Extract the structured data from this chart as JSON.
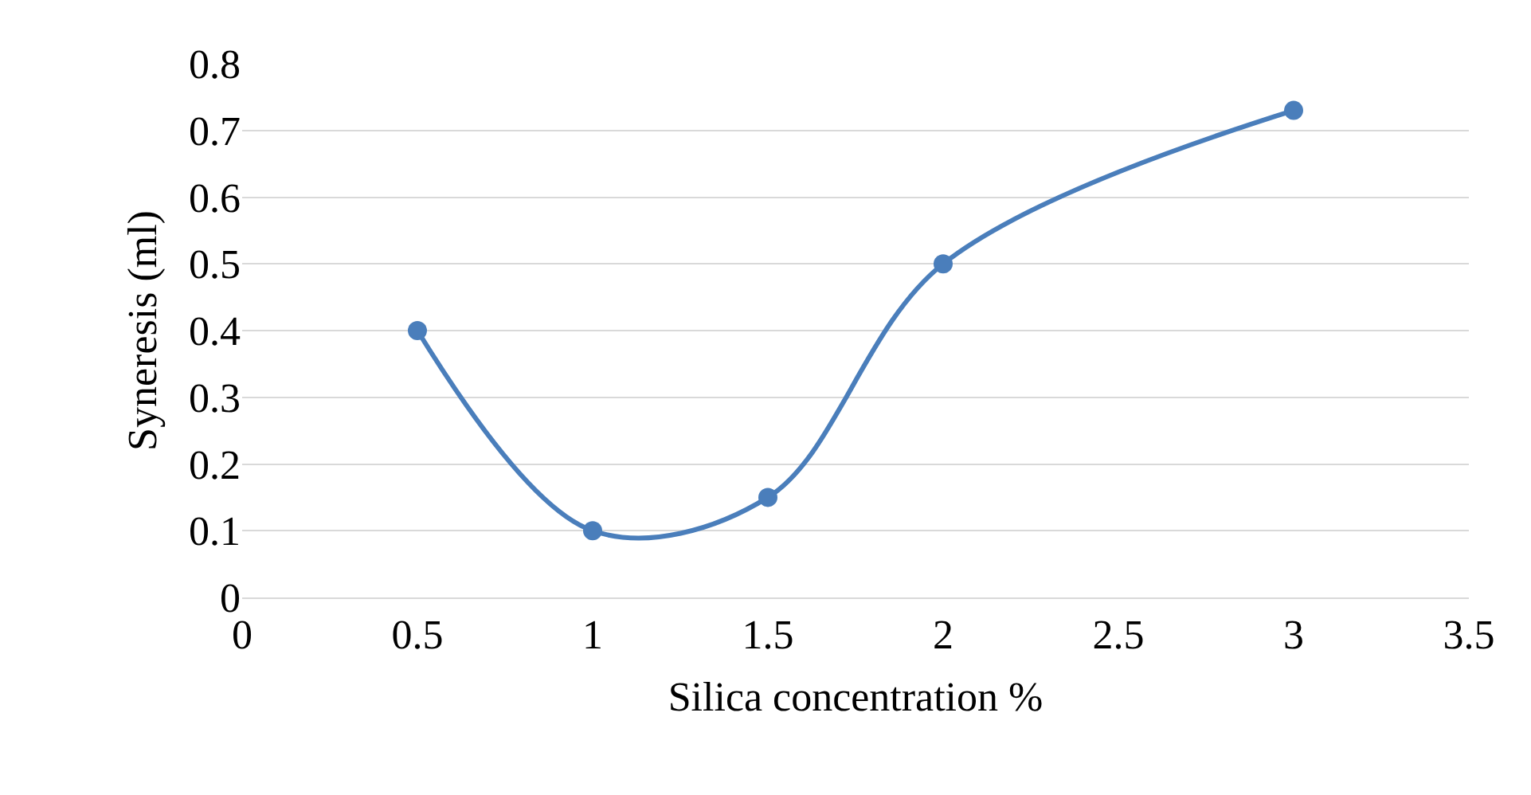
{
  "chart_data": {
    "type": "line",
    "xlabel": "Silica concentration %",
    "ylabel": "Syneresis (ml)",
    "x": [
      0.5,
      1,
      1.5,
      2,
      3
    ],
    "series": [
      {
        "color": "#4a7ebb",
        "values": [
          0.4,
          0.1,
          0.15,
          0.5,
          0.73
        ]
      }
    ],
    "xlim": [
      0,
      3.5
    ],
    "xticks": [
      0,
      0.5,
      1,
      1.5,
      2,
      2.5,
      3,
      3.5
    ],
    "ylim": [
      0,
      0.8
    ],
    "yticks": [
      0,
      0.1,
      0.2,
      0.3,
      0.4,
      0.5,
      0.6,
      0.7,
      0.8
    ],
    "grid": "y",
    "marker": "circle",
    "line_style": "solid"
  }
}
